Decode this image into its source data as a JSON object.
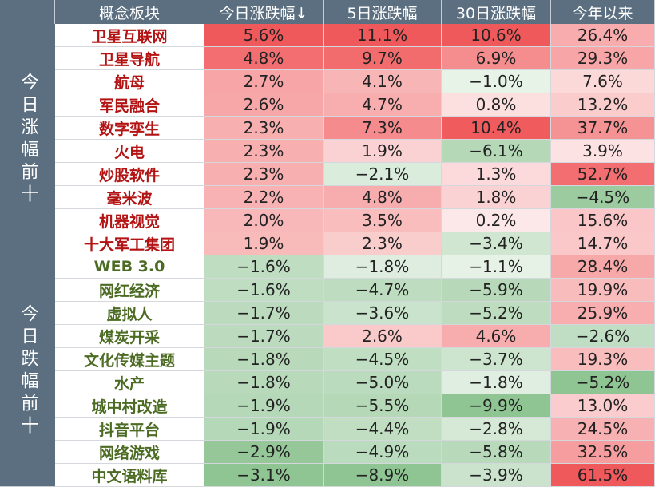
{
  "columns": [
    "概念板块",
    "今日涨跌幅↓",
    "5日涨跌幅",
    "30日涨跌幅",
    "今年以来"
  ],
  "groups": [
    {
      "label": "今日涨幅前十",
      "direction": "up"
    },
    {
      "label": "今日跌幅前十",
      "direction": "down"
    }
  ],
  "colors": {
    "header_bg": "#5b6f80",
    "up_text": "#b31313",
    "down_text": "#4c6b23",
    "positive_scale": "#f0595b",
    "negative_scale": "#8fc493"
  },
  "rows": [
    {
      "name": "卫星互联网",
      "group": 0,
      "cells": [
        "5.6%",
        "11.1%",
        "10.6%",
        "26.4%"
      ],
      "values": [
        5.6,
        11.1,
        10.6,
        26.4
      ]
    },
    {
      "name": "卫星导航",
      "group": 0,
      "cells": [
        "4.8%",
        "9.7%",
        "6.9%",
        "29.3%"
      ],
      "values": [
        4.8,
        9.7,
        6.9,
        29.3
      ]
    },
    {
      "name": "航母",
      "group": 0,
      "cells": [
        "2.7%",
        "4.1%",
        "−1.0%",
        "7.6%"
      ],
      "values": [
        2.7,
        4.1,
        -1.0,
        7.6
      ]
    },
    {
      "name": "军民融合",
      "group": 0,
      "cells": [
        "2.6%",
        "4.7%",
        "0.8%",
        "13.2%"
      ],
      "values": [
        2.6,
        4.7,
        0.8,
        13.2
      ]
    },
    {
      "name": "数字孪生",
      "group": 0,
      "cells": [
        "2.3%",
        "7.3%",
        "10.4%",
        "37.7%"
      ],
      "values": [
        2.3,
        7.3,
        10.4,
        37.7
      ]
    },
    {
      "name": "火电",
      "group": 0,
      "cells": [
        "2.3%",
        "1.9%",
        "−6.1%",
        "3.9%"
      ],
      "values": [
        2.3,
        1.9,
        -6.1,
        3.9
      ]
    },
    {
      "name": "炒股软件",
      "group": 0,
      "cells": [
        "2.3%",
        "−2.1%",
        "1.3%",
        "52.7%"
      ],
      "values": [
        2.3,
        -2.1,
        1.3,
        52.7
      ]
    },
    {
      "name": "毫米波",
      "group": 0,
      "cells": [
        "2.2%",
        "4.8%",
        "1.8%",
        "−4.5%"
      ],
      "values": [
        2.2,
        4.8,
        1.8,
        -4.5
      ]
    },
    {
      "name": "机器视觉",
      "group": 0,
      "cells": [
        "2.0%",
        "3.5%",
        "0.2%",
        "15.6%"
      ],
      "values": [
        2.0,
        3.5,
        0.2,
        15.6
      ]
    },
    {
      "name": "十大军工集团",
      "group": 0,
      "cells": [
        "1.9%",
        "2.3%",
        "−3.4%",
        "14.7%"
      ],
      "values": [
        1.9,
        2.3,
        -3.4,
        14.7
      ]
    },
    {
      "name": "WEB 3.0",
      "group": 1,
      "cells": [
        "−1.6%",
        "−1.8%",
        "−1.1%",
        "28.4%"
      ],
      "values": [
        -1.6,
        -1.8,
        -1.1,
        28.4
      ]
    },
    {
      "name": "网红经济",
      "group": 1,
      "cells": [
        "−1.6%",
        "−4.7%",
        "−5.9%",
        "19.9%"
      ],
      "values": [
        -1.6,
        -4.7,
        -5.9,
        19.9
      ]
    },
    {
      "name": "虚拟人",
      "group": 1,
      "cells": [
        "−1.7%",
        "−3.6%",
        "−5.2%",
        "25.9%"
      ],
      "values": [
        -1.7,
        -3.6,
        -5.2,
        25.9
      ]
    },
    {
      "name": "煤炭开采",
      "group": 1,
      "cells": [
        "−1.7%",
        "2.6%",
        "4.6%",
        "−2.6%"
      ],
      "values": [
        -1.7,
        2.6,
        4.6,
        -2.6
      ]
    },
    {
      "name": "文化传媒主题",
      "group": 1,
      "cells": [
        "−1.8%",
        "−4.5%",
        "−3.7%",
        "19.3%"
      ],
      "values": [
        -1.8,
        -4.5,
        -3.7,
        19.3
      ]
    },
    {
      "name": "水产",
      "group": 1,
      "cells": [
        "−1.8%",
        "−5.0%",
        "−1.8%",
        "−5.2%"
      ],
      "values": [
        -1.8,
        -5.0,
        -1.8,
        -5.2
      ]
    },
    {
      "name": "城中村改造",
      "group": 1,
      "cells": [
        "−1.9%",
        "−5.5%",
        "−9.9%",
        "13.0%"
      ],
      "values": [
        -1.9,
        -5.5,
        -9.9,
        13.0
      ]
    },
    {
      "name": "抖音平台",
      "group": 1,
      "cells": [
        "−1.9%",
        "−4.4%",
        "−2.8%",
        "24.5%"
      ],
      "values": [
        -1.9,
        -4.4,
        -2.8,
        24.5
      ]
    },
    {
      "name": "网络游戏",
      "group": 1,
      "cells": [
        "−2.9%",
        "−4.9%",
        "−5.8%",
        "32.5%"
      ],
      "values": [
        -2.9,
        -4.9,
        -5.8,
        32.5
      ]
    },
    {
      "name": "中文语料库",
      "group": 1,
      "cells": [
        "−3.1%",
        "−8.9%",
        "−3.9%",
        "61.5%"
      ],
      "values": [
        -3.1,
        -8.9,
        -3.9,
        61.5
      ]
    }
  ]
}
